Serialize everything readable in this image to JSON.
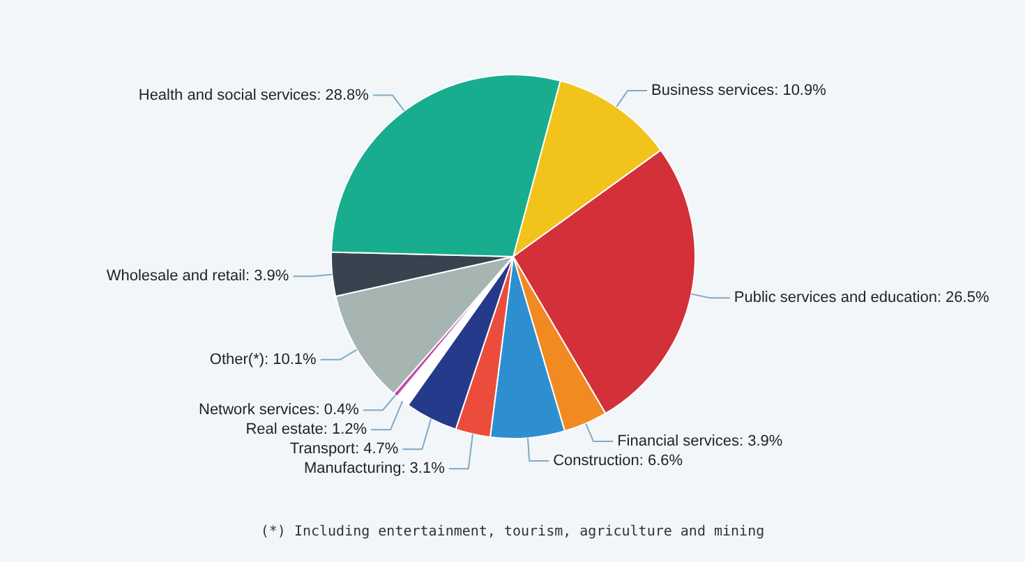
{
  "chart_data": {
    "type": "pie",
    "categories": [
      "Business services",
      "Public services and education",
      "Financial services",
      "Construction",
      "Manufacturing",
      "Transport",
      "Real estate",
      "Network services",
      "Other(*)",
      "Wholesale and retail",
      "Health and social services"
    ],
    "values": [
      10.9,
      26.5,
      3.9,
      6.6,
      3.1,
      4.7,
      1.2,
      0.4,
      10.1,
      3.9,
      28.8
    ],
    "colors": [
      "#f2c31a",
      "#d3303a",
      "#f28a22",
      "#2e8fd0",
      "#ec4c3c",
      "#263a8c",
      "#ffffff",
      "#c04aa8",
      "#a6b4b2",
      "#37444f",
      "#17ad8e"
    ],
    "value_labels": [
      "10.9%",
      "26.5%",
      "3.9%",
      "6.6%",
      "3.1%",
      "4.7%",
      "1.2%",
      "0.4%",
      "10.1%",
      "3.9%",
      "28.8%"
    ],
    "legend": false,
    "annotations": [
      "(*) Including entertainment, tourism, agriculture and mining"
    ]
  }
}
